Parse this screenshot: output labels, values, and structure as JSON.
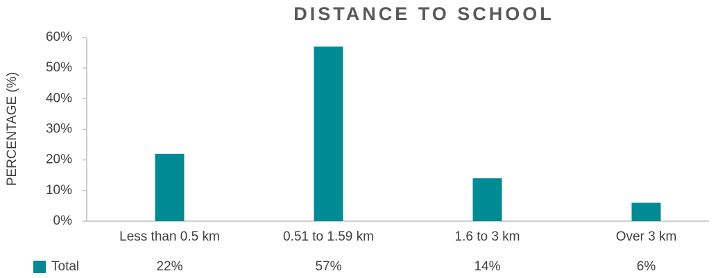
{
  "chart_data": {
    "type": "bar",
    "title": "DISTANCE TO SCHOOL",
    "y_label": "PERCENTAGE (%)",
    "categories": [
      "Less than 0.5 km",
      "0.51 to 1.59 km",
      "1.6 to 3 km",
      "Over 3 km"
    ],
    "series": [
      {
        "name": "Total",
        "color": "#008b94",
        "values": [
          22,
          57,
          14,
          6
        ],
        "value_labels": [
          "22%",
          "57%",
          "14%",
          "6%"
        ]
      }
    ],
    "ylim": [
      0,
      60
    ],
    "yticks": [
      {
        "value": 0,
        "label": "0%"
      },
      {
        "value": 10,
        "label": "10%"
      },
      {
        "value": 20,
        "label": "20%"
      },
      {
        "value": 30,
        "label": "30%"
      },
      {
        "value": 40,
        "label": "40%"
      },
      {
        "value": 50,
        "label": "50%"
      },
      {
        "value": 60,
        "label": "60%"
      }
    ],
    "grid": false
  }
}
